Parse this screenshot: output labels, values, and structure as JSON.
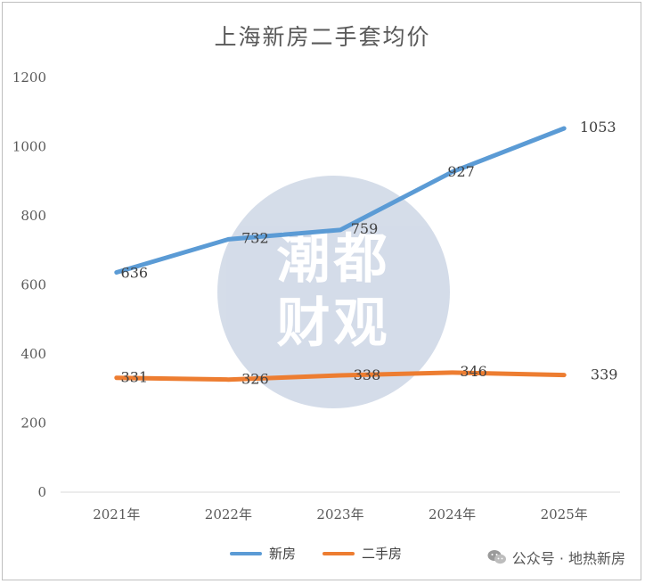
{
  "chart_data": {
    "type": "line",
    "title": "上海新房二手套均价",
    "categories": [
      "2021年",
      "2022年",
      "2023年",
      "2024年",
      "2025年"
    ],
    "ylim": [
      0,
      1200
    ],
    "yticks": [
      0,
      200,
      400,
      600,
      800,
      1000,
      1200
    ],
    "grid": false,
    "legend_position": "bottom",
    "series": [
      {
        "name": "新房",
        "values": [
          636,
          732,
          759,
          927,
          1053
        ],
        "color": "#5b9bd5"
      },
      {
        "name": "二手房",
        "values": [
          331,
          326,
          338,
          346,
          339
        ],
        "color": "#ed7d31"
      }
    ]
  },
  "watermark": {
    "line1": "潮都",
    "line2": "财观"
  },
  "credit": {
    "icon": "wechat-icon",
    "text": "公众号 · 地热新房"
  }
}
